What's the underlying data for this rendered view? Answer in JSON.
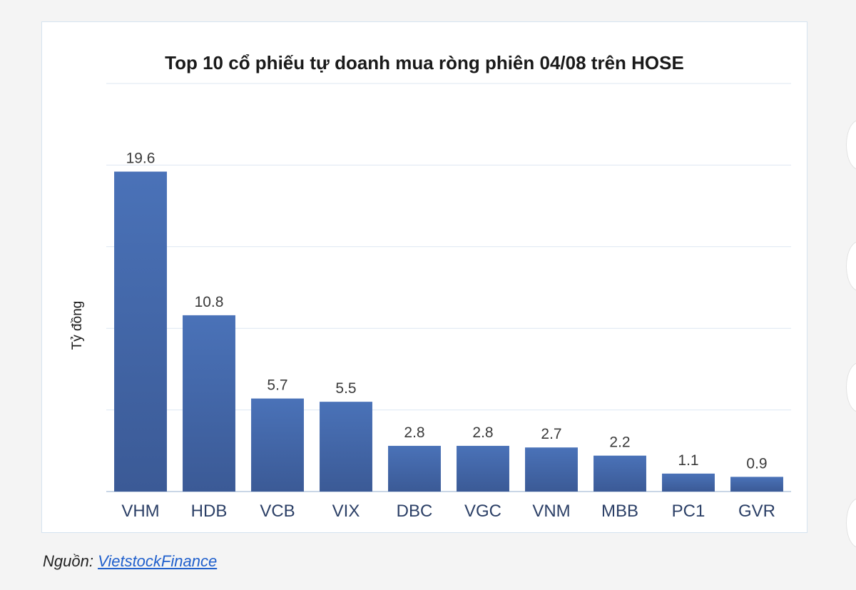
{
  "chart_data": {
    "type": "bar",
    "title": "Top 10 cổ phiếu tự doanh mua ròng phiên 04/08 trên HOSE",
    "ylabel": "Tỷ đồng",
    "xlabel": "",
    "categories": [
      "VHM",
      "HDB",
      "VCB",
      "VIX",
      "DBC",
      "VGC",
      "VNM",
      "MBB",
      "PC1",
      "GVR"
    ],
    "values": [
      19.6,
      10.8,
      5.7,
      5.5,
      2.8,
      2.8,
      2.7,
      2.2,
      1.1,
      0.9
    ],
    "data_labels": [
      "19.6",
      "10.8",
      "5.7",
      "5.5",
      "2.8",
      "2.8",
      "2.7",
      "2.2",
      "1.1",
      "0.9"
    ],
    "ylim": [
      0,
      25
    ],
    "grid": true,
    "bar_color": "#4a72b8",
    "bar_color_dark": "#3b5a96"
  },
  "source": {
    "label": "Nguồn: ",
    "link_text": "VietstockFinance"
  }
}
